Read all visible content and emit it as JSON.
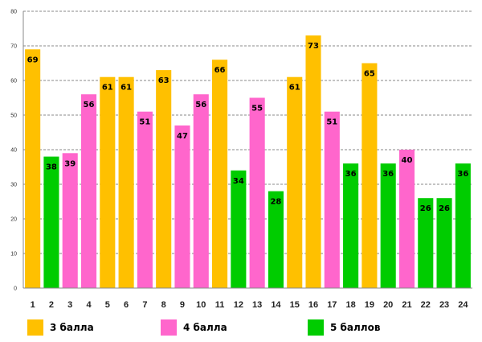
{
  "chart_data": {
    "type": "bar",
    "title": "",
    "xlabel": "",
    "ylabel": "",
    "ylim": [
      0,
      80
    ],
    "yticks": [
      0,
      10,
      20,
      30,
      40,
      50,
      60,
      70,
      80
    ],
    "grid": true,
    "categories": [
      "1",
      "2",
      "3",
      "4",
      "5",
      "6",
      "7",
      "8",
      "9",
      "10",
      "11",
      "12",
      "13",
      "14",
      "15",
      "16",
      "17",
      "18",
      "19",
      "20",
      "21",
      "22",
      "23",
      "24"
    ],
    "values": [
      69,
      38,
      39,
      56,
      61,
      61,
      51,
      63,
      47,
      56,
      66,
      34,
      55,
      28,
      61,
      73,
      51,
      36,
      65,
      36,
      40,
      26,
      26,
      36
    ],
    "groups": [
      "3 балла",
      "5 баллов",
      "4 балла",
      "4 балла",
      "3 балла",
      "3 балла",
      "4 балла",
      "3 балла",
      "4 балла",
      "4 балла",
      "3 балла",
      "5 баллов",
      "4 балла",
      "5 баллов",
      "3 балла",
      "3 балла",
      "4 балла",
      "5 баллов",
      "3 балла",
      "5 баллов",
      "4 балла",
      "5 баллов",
      "5 баллов",
      "5 баллов"
    ],
    "legend": [
      {
        "label": "3 балла",
        "color": "#FFC000"
      },
      {
        "label": "4 балла",
        "color": "#FF66CC"
      },
      {
        "label": "5 баллов",
        "color": "#00CC00"
      }
    ],
    "legend_position": "bottom"
  }
}
